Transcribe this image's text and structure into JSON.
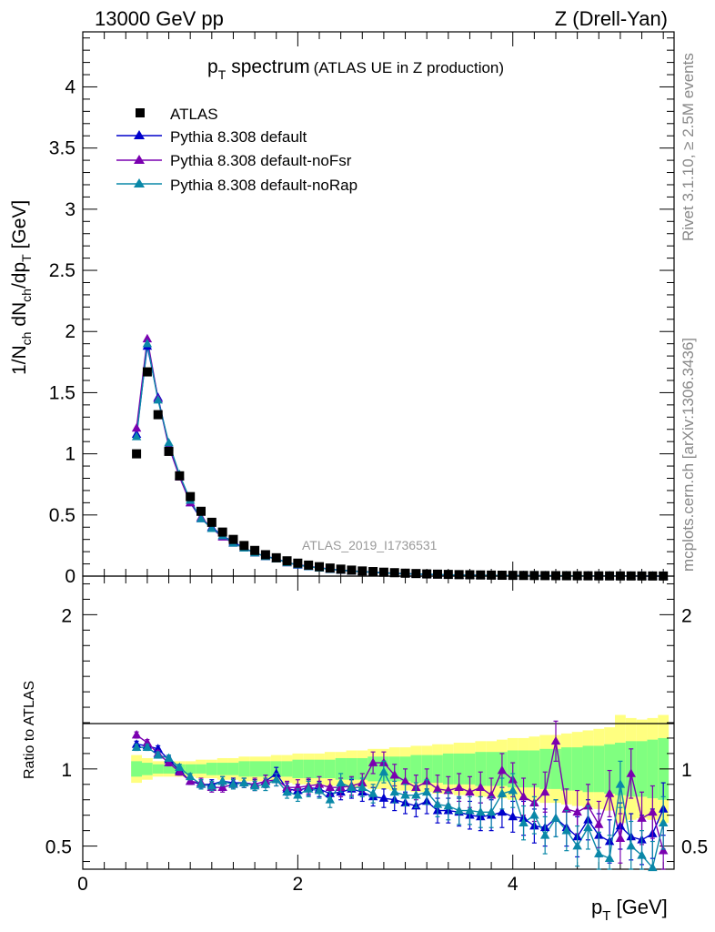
{
  "header": {
    "left": "13000 GeV pp",
    "right": "Z (Drell-Yan)"
  },
  "side": {
    "rivet": "Rivet 3.1.10, ≥ 2.5M events",
    "mcplots": "mcplots.cern.ch [arXiv:1306.3436]"
  },
  "watermark": "ATLAS_2019_I1736531",
  "colors": {
    "data": "#000000",
    "default": "#0000cc",
    "noFsr": "#7a00b0",
    "noRap": "#0a88a8",
    "band_outer": "#ffff80",
    "band_inner": "#80ff80"
  },
  "chart_data": [
    {
      "type": "scatter",
      "title": {
        "main": "p",
        "sub": "T",
        "rest": "spectrum",
        "note": "(ATLAS UE in Z production)"
      },
      "ylabel": {
        "a": "1/N",
        "a_sub": "ch",
        "b": " dN",
        "b_sub": "ch",
        "c": "/dp",
        "c_sub": "T",
        "d": " [GeV]"
      },
      "xlim": [
        0,
        5.5
      ],
      "ylim": [
        0,
        4.45
      ],
      "yticks": [
        "0",
        "0.5",
        "1",
        "1.5",
        "2",
        "2.5",
        "3",
        "3.5",
        "4"
      ],
      "legend": {
        "placement": "top-left",
        "entries": [
          "ATLAS",
          "Pythia 8.308 default",
          "Pythia 8.308 default-noFsr",
          "Pythia 8.308 default-noRap"
        ]
      },
      "x": [
        0.5,
        0.6,
        0.7,
        0.8,
        0.9,
        1.0,
        1.1,
        1.2,
        1.3,
        1.4,
        1.5,
        1.6,
        1.7,
        1.8,
        1.9,
        2.0,
        2.1,
        2.2,
        2.3,
        2.4,
        2.5,
        2.6,
        2.7,
        2.8,
        2.9,
        3.0,
        3.1,
        3.2,
        3.3,
        3.4,
        3.5,
        3.6,
        3.7,
        3.8,
        3.9,
        4.0,
        4.1,
        4.2,
        4.3,
        4.4,
        4.5,
        4.6,
        4.7,
        4.8,
        4.9,
        5.0,
        5.1,
        5.2,
        5.3,
        5.4
      ],
      "series": [
        {
          "name": "ATLAS",
          "marker": "square",
          "values": [
            1.0,
            1.67,
            1.32,
            1.02,
            0.82,
            0.65,
            0.53,
            0.44,
            0.36,
            0.3,
            0.25,
            0.21,
            0.175,
            0.15,
            0.125,
            0.106,
            0.09,
            0.077,
            0.066,
            0.057,
            0.049,
            0.042,
            0.037,
            0.032,
            0.028,
            0.024,
            0.021,
            0.018,
            0.016,
            0.014,
            0.012,
            0.011,
            0.0095,
            0.0083,
            0.0073,
            0.0064,
            0.0056,
            0.0049,
            0.0043,
            0.0038,
            0.0033,
            0.0029,
            0.0026,
            0.0023,
            0.002,
            0.0018,
            0.0016,
            0.0014,
            0.0012,
            0.0011
          ]
        },
        {
          "name": "Pythia 8.308 default",
          "marker": "triangle",
          "values": [
            1.16,
            1.88,
            1.46,
            1.07,
            0.82,
            0.6,
            0.47,
            0.4,
            0.33,
            0.28,
            0.23,
            0.19,
            0.16,
            0.145,
            0.11,
            0.09,
            0.078,
            0.067,
            0.055,
            0.048,
            0.041,
            0.036,
            0.031,
            0.026,
            0.022,
            0.019,
            0.016,
            0.014,
            0.012,
            0.01,
            0.0087,
            0.0075,
            0.0065,
            0.0057,
            0.005,
            0.0044,
            0.0038,
            0.0034,
            0.003,
            0.0026,
            0.0023,
            0.002,
            0.0018,
            0.0016,
            0.0014,
            0.0012,
            0.0011,
            0.001,
            0.0009,
            0.0008
          ]
        },
        {
          "name": "Pythia 8.308 default-noFsr",
          "marker": "triangle",
          "values": [
            1.21,
            1.94,
            1.45,
            1.06,
            0.81,
            0.6,
            0.48,
            0.39,
            0.32,
            0.27,
            0.23,
            0.19,
            0.16,
            0.14,
            0.11,
            0.095,
            0.08,
            0.069,
            0.058,
            0.05,
            0.043,
            0.038,
            0.033,
            0.028,
            0.024,
            0.021,
            0.018,
            0.015,
            0.013,
            0.011,
            0.0095,
            0.0083,
            0.0072,
            0.0063,
            0.0055,
            0.0048,
            0.0042,
            0.0037,
            0.0032,
            0.0028,
            0.0025,
            0.0022,
            0.0019,
            0.0017,
            0.0015,
            0.0013,
            0.0012,
            0.0011,
            0.001,
            0.0009
          ]
        },
        {
          "name": "Pythia 8.308 default-noRap",
          "marker": "triangle",
          "values": [
            1.14,
            1.9,
            1.44,
            1.09,
            0.83,
            0.62,
            0.47,
            0.39,
            0.33,
            0.27,
            0.23,
            0.19,
            0.16,
            0.14,
            0.11,
            0.093,
            0.078,
            0.066,
            0.056,
            0.049,
            0.042,
            0.037,
            0.032,
            0.027,
            0.023,
            0.02,
            0.017,
            0.015,
            0.013,
            0.011,
            0.009,
            0.0078,
            0.0068,
            0.006,
            0.0052,
            0.0046,
            0.004,
            0.0035,
            0.0031,
            0.0027,
            0.0024,
            0.0021,
            0.0019,
            0.0017,
            0.0015,
            0.0013,
            0.0012,
            0.0011,
            0.001,
            0.0009
          ]
        }
      ]
    },
    {
      "type": "scatter",
      "ylabel": "Ratio to ATLAS",
      "xlabel": {
        "main": "p",
        "sub": "T",
        "rest": " [GeV]"
      },
      "xlim": [
        0,
        5.5
      ],
      "xticks": [
        "0",
        "2",
        "4"
      ],
      "ylim": [
        0.35,
        2.25
      ],
      "yticks": [
        "0.5",
        "1",
        "2"
      ],
      "x": [
        0.5,
        0.6,
        0.7,
        0.8,
        0.9,
        1.0,
        1.1,
        1.2,
        1.3,
        1.4,
        1.5,
        1.6,
        1.7,
        1.8,
        1.9,
        2.0,
        2.1,
        2.2,
        2.3,
        2.4,
        2.5,
        2.6,
        2.7,
        2.8,
        2.9,
        3.0,
        3.1,
        3.2,
        3.3,
        3.4,
        3.5,
        3.6,
        3.7,
        3.8,
        3.9,
        4.0,
        4.1,
        4.2,
        4.3,
        4.4,
        4.5,
        4.6,
        4.7,
        4.8,
        4.9,
        5.0,
        5.1,
        5.2,
        5.3,
        5.4
      ],
      "band_inner_halfwidth": [
        0.05,
        0.04,
        0.03,
        0.03,
        0.03,
        0.03,
        0.03,
        0.04,
        0.04,
        0.04,
        0.05,
        0.05,
        0.05,
        0.05,
        0.05,
        0.06,
        0.06,
        0.06,
        0.06,
        0.07,
        0.07,
        0.07,
        0.08,
        0.08,
        0.08,
        0.08,
        0.09,
        0.09,
        0.09,
        0.1,
        0.1,
        0.1,
        0.11,
        0.11,
        0.11,
        0.12,
        0.12,
        0.12,
        0.13,
        0.13,
        0.14,
        0.14,
        0.15,
        0.15,
        0.16,
        0.17,
        0.18,
        0.18,
        0.19,
        0.2
      ],
      "band_outer_halfwidth": [
        0.09,
        0.07,
        0.05,
        0.05,
        0.05,
        0.05,
        0.06,
        0.06,
        0.07,
        0.07,
        0.08,
        0.08,
        0.08,
        0.09,
        0.09,
        0.1,
        0.1,
        0.1,
        0.11,
        0.11,
        0.12,
        0.12,
        0.13,
        0.13,
        0.14,
        0.14,
        0.15,
        0.15,
        0.16,
        0.16,
        0.17,
        0.17,
        0.18,
        0.18,
        0.19,
        0.2,
        0.2,
        0.21,
        0.22,
        0.22,
        0.23,
        0.24,
        0.25,
        0.26,
        0.27,
        0.35,
        0.33,
        0.32,
        0.33,
        0.35
      ],
      "series": [
        {
          "name": "Pythia 8.308 default",
          "values": [
            1.16,
            1.15,
            1.13,
            1.06,
            0.99,
            0.92,
            0.9,
            0.9,
            0.92,
            0.91,
            0.91,
            0.9,
            0.92,
            0.97,
            0.87,
            0.86,
            0.88,
            0.87,
            0.84,
            0.85,
            0.87,
            0.85,
            0.82,
            0.81,
            0.8,
            0.78,
            0.76,
            0.79,
            0.73,
            0.73,
            0.72,
            0.7,
            0.69,
            0.7,
            0.72,
            0.69,
            0.68,
            0.63,
            0.62,
            0.68,
            0.62,
            0.56,
            0.67,
            0.57,
            0.53,
            0.63,
            0.56,
            0.54,
            0.58,
            0.74
          ],
          "err": [
            0.02,
            0.02,
            0.02,
            0.02,
            0.02,
            0.02,
            0.03,
            0.03,
            0.03,
            0.03,
            0.03,
            0.03,
            0.04,
            0.04,
            0.04,
            0.04,
            0.05,
            0.05,
            0.05,
            0.05,
            0.06,
            0.06,
            0.06,
            0.06,
            0.07,
            0.07,
            0.07,
            0.08,
            0.08,
            0.08,
            0.09,
            0.09,
            0.09,
            0.1,
            0.1,
            0.1,
            0.11,
            0.11,
            0.12,
            0.12,
            0.12,
            0.13,
            0.13,
            0.14,
            0.14,
            0.15,
            0.15,
            0.16,
            0.16,
            0.17
          ]
        },
        {
          "name": "Pythia 8.308 default-noFsr",
          "values": [
            1.22,
            1.17,
            1.1,
            1.04,
            0.98,
            0.92,
            0.91,
            0.88,
            0.88,
            0.9,
            0.91,
            0.9,
            0.92,
            0.93,
            0.88,
            0.88,
            0.89,
            0.9,
            0.88,
            0.88,
            0.89,
            0.91,
            1.04,
            1.04,
            0.96,
            0.92,
            0.88,
            0.92,
            0.87,
            0.86,
            0.88,
            0.85,
            0.88,
            0.83,
            0.99,
            0.93,
            0.82,
            0.78,
            0.85,
            1.18,
            0.74,
            0.72,
            0.76,
            0.64,
            0.84,
            0.55,
            0.97,
            0.68,
            0.72,
            0.47
          ],
          "err": [
            0.02,
            0.02,
            0.02,
            0.02,
            0.02,
            0.02,
            0.03,
            0.03,
            0.03,
            0.03,
            0.03,
            0.04,
            0.04,
            0.04,
            0.04,
            0.05,
            0.05,
            0.05,
            0.05,
            0.06,
            0.06,
            0.06,
            0.07,
            0.07,
            0.07,
            0.08,
            0.08,
            0.08,
            0.09,
            0.09,
            0.09,
            0.1,
            0.1,
            0.11,
            0.11,
            0.11,
            0.12,
            0.12,
            0.13,
            0.13,
            0.13,
            0.14,
            0.14,
            0.15,
            0.15,
            0.16,
            0.16,
            0.17,
            0.17,
            0.18
          ]
        },
        {
          "name": "Pythia 8.308 default-noRap",
          "values": [
            1.14,
            1.14,
            1.09,
            1.07,
            1.01,
            0.95,
            0.9,
            0.89,
            0.92,
            0.9,
            0.91,
            0.89,
            0.9,
            0.93,
            0.85,
            0.83,
            0.87,
            0.86,
            0.8,
            0.91,
            0.88,
            0.88,
            0.84,
            0.98,
            0.85,
            0.83,
            0.83,
            0.85,
            0.77,
            0.76,
            0.73,
            0.73,
            0.72,
            0.72,
            0.84,
            0.86,
            0.65,
            0.7,
            0.57,
            0.68,
            0.6,
            0.5,
            0.62,
            0.45,
            0.42,
            0.9,
            0.5,
            0.44,
            0.36,
            0.65
          ],
          "err": [
            0.02,
            0.02,
            0.02,
            0.02,
            0.02,
            0.02,
            0.03,
            0.03,
            0.03,
            0.03,
            0.03,
            0.03,
            0.04,
            0.04,
            0.04,
            0.04,
            0.05,
            0.05,
            0.05,
            0.06,
            0.06,
            0.06,
            0.06,
            0.07,
            0.07,
            0.07,
            0.08,
            0.08,
            0.08,
            0.09,
            0.09,
            0.09,
            0.1,
            0.1,
            0.1,
            0.11,
            0.11,
            0.12,
            0.12,
            0.12,
            0.13,
            0.13,
            0.14,
            0.14,
            0.15,
            0.15,
            0.16,
            0.16,
            0.17,
            0.17
          ]
        }
      ]
    }
  ]
}
